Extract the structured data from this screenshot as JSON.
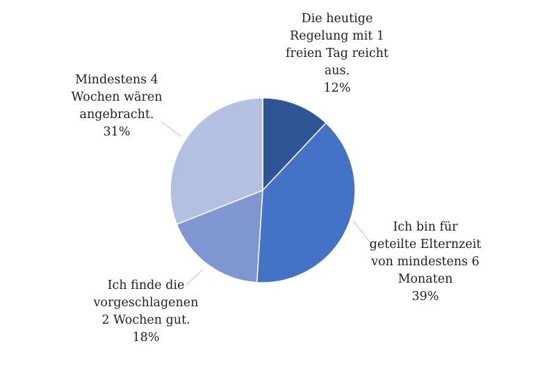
{
  "chart_data": {
    "type": "pie",
    "start_angle_deg": 0,
    "direction": "clockwise",
    "slices": [
      {
        "label_lines": [
          "Die heutige",
          "Regelung mit 1",
          "freien Tag reicht",
          "aus."
        ],
        "percent_text": "12%",
        "value": 12,
        "color": "#2f5597"
      },
      {
        "label_lines": [
          "Ich bin für",
          "geteilte Elternzeit",
          "von mindestens 6",
          "Monaten"
        ],
        "percent_text": "39%",
        "value": 39,
        "color": "#4472c4"
      },
      {
        "label_lines": [
          "Ich finde die",
          "vorgeschlagenen",
          "2 Wochen gut."
        ],
        "percent_text": "18%",
        "value": 18,
        "color": "#7f96d1"
      },
      {
        "label_lines": [
          "Mindestens 4",
          "Wochen wären",
          "angebracht."
        ],
        "percent_text": "31%",
        "value": 31,
        "color": "#b4c0e1"
      }
    ]
  }
}
